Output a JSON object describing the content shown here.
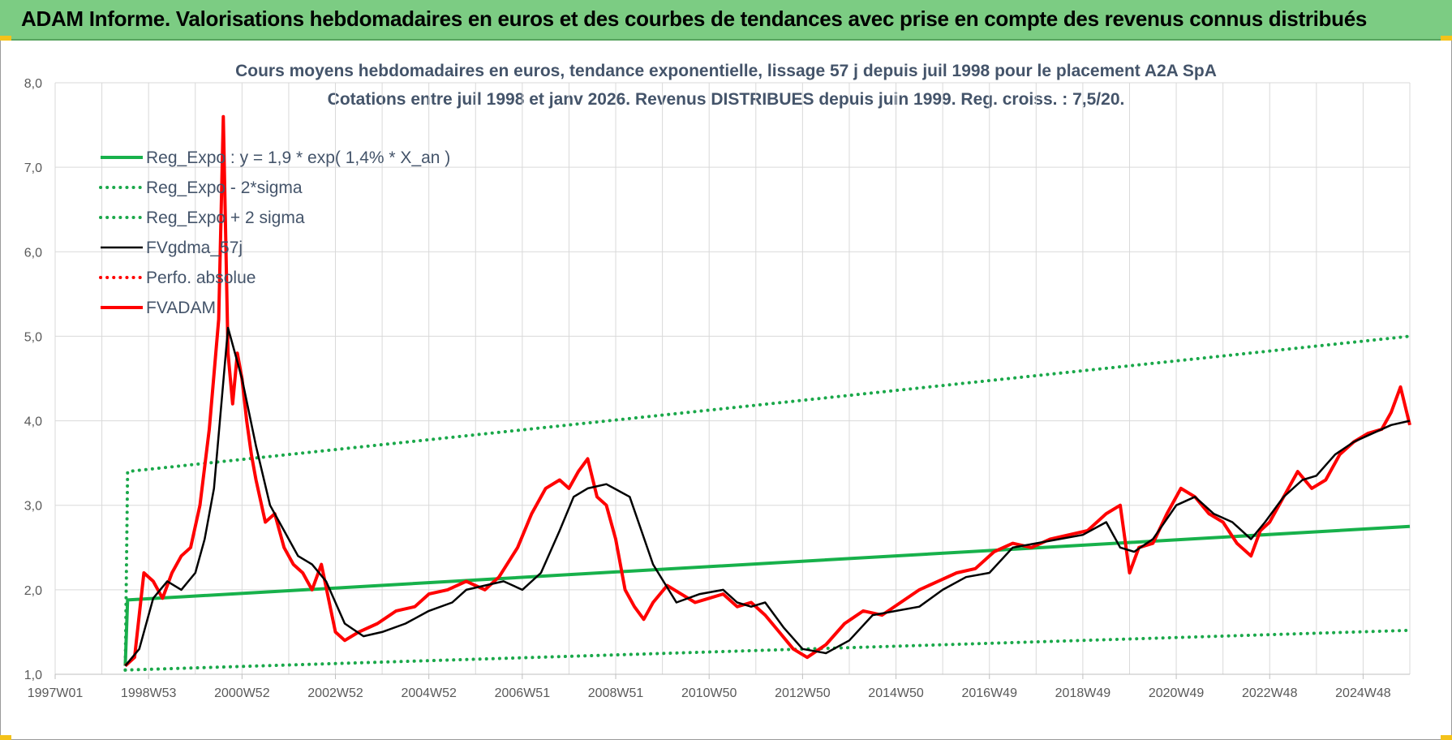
{
  "banner": {
    "title": "ADAM Informe. Valorisations hebdomadaires en euros et des courbes de tendances avec prise en compte des revenus connus distribués"
  },
  "colors": {
    "banner_bg": "#7ccc83",
    "title_text": "#44546a",
    "reg_green": "#17b14b",
    "band_green": "#1aa84a",
    "smooth_black": "#000000",
    "adam_red": "#ff0000",
    "grid": "#d9d9d9"
  },
  "chart_data": {
    "type": "line",
    "title": "Cours moyens hebdomadaires en euros, tendance exponentielle, lissage 57 j depuis juil 1998 pour le placement A2A SpA",
    "subtitle": "Cotations entre juil 1998 et janv 2026. Revenus DISTRIBUES depuis juin 1999.  Reg. croiss. : 7,5/20.",
    "xlabel": "",
    "ylabel": "",
    "ylim": [
      1.0,
      8.0
    ],
    "xlim": [
      1997.0,
      2026.0
    ],
    "y_ticks": [
      "1,0",
      "2,0",
      "3,0",
      "4,0",
      "5,0",
      "6,0",
      "7,0",
      "8,0"
    ],
    "x_ticks": [
      "1997W01",
      "1998W53",
      "2000W52",
      "2002W52",
      "2004W52",
      "2006W51",
      "2008W51",
      "2010W50",
      "2012W50",
      "2014W50",
      "2016W49",
      "2018W49",
      "2020W49",
      "2022W48",
      "2024W48"
    ],
    "grid": true,
    "legend_position": "top-left",
    "series": [
      {
        "name": "Reg_Expo : y = 1,9 * exp( 1,4% *  X_an )",
        "style": "solid-thick",
        "color": "#17b14b",
        "x": [
          1998.5,
          1998.55,
          2026.0
        ],
        "y": [
          1.1,
          1.88,
          2.75
        ]
      },
      {
        "name": "Reg_Expo - 2*sigma",
        "style": "dotted",
        "color": "#1aa84a",
        "x": [
          1998.5,
          2026.0
        ],
        "y": [
          1.05,
          1.52
        ]
      },
      {
        "name": "Reg_Expo + 2 sigma",
        "style": "dotted",
        "color": "#1aa84a",
        "x": [
          1998.5,
          1998.55,
          2026.0
        ],
        "y": [
          1.05,
          3.4,
          5.0
        ]
      },
      {
        "name": "FVgdma_57j",
        "style": "solid",
        "color": "#000000",
        "x": [
          1998.5,
          1998.8,
          1999.1,
          1999.4,
          1999.7,
          2000.0,
          2000.2,
          2000.4,
          2000.7,
          2001.0,
          2001.3,
          2001.6,
          2001.9,
          2002.2,
          2002.5,
          2002.8,
          2003.2,
          2003.6,
          2004.0,
          2004.5,
          2005.0,
          2005.5,
          2005.8,
          2006.2,
          2006.6,
          2007.0,
          2007.4,
          2007.8,
          2008.1,
          2008.4,
          2008.8,
          2009.3,
          2009.8,
          2010.3,
          2010.8,
          2011.3,
          2011.6,
          2011.9,
          2012.2,
          2012.6,
          2013.0,
          2013.5,
          2014.0,
          2014.5,
          2015.0,
          2015.5,
          2016.0,
          2016.5,
          2017.0,
          2017.5,
          2018.0,
          2018.5,
          2019.0,
          2019.5,
          2019.8,
          2020.1,
          2020.5,
          2021.0,
          2021.4,
          2021.8,
          2022.2,
          2022.6,
          2022.9,
          2023.3,
          2023.7,
          2024.0,
          2024.4,
          2024.8,
          2025.2,
          2025.6,
          2026.0
        ],
        "y": [
          1.1,
          1.3,
          1.9,
          2.1,
          2.0,
          2.2,
          2.6,
          3.2,
          5.1,
          4.5,
          3.7,
          3.0,
          2.7,
          2.4,
          2.3,
          2.1,
          1.6,
          1.45,
          1.5,
          1.6,
          1.75,
          1.85,
          2.0,
          2.05,
          2.1,
          2.0,
          2.2,
          2.7,
          3.1,
          3.2,
          3.25,
          3.1,
          2.3,
          1.85,
          1.95,
          2.0,
          1.85,
          1.8,
          1.85,
          1.55,
          1.3,
          1.25,
          1.4,
          1.7,
          1.75,
          1.8,
          2.0,
          2.15,
          2.2,
          2.5,
          2.55,
          2.6,
          2.65,
          2.8,
          2.5,
          2.45,
          2.6,
          3.0,
          3.1,
          2.9,
          2.8,
          2.6,
          2.8,
          3.1,
          3.3,
          3.35,
          3.6,
          3.75,
          3.85,
          3.95,
          4.0
        ]
      },
      {
        "name": "Perfo. absolue",
        "style": "dotted",
        "color": "#ff0000",
        "x": [],
        "y": []
      },
      {
        "name": "FVADAM",
        "style": "solid-thick",
        "color": "#ff0000",
        "x": [
          1998.5,
          1998.7,
          1998.9,
          1999.1,
          1999.3,
          1999.5,
          1999.7,
          1999.9,
          2000.1,
          2000.3,
          2000.5,
          2000.6,
          2000.7,
          2000.8,
          2000.9,
          2001.0,
          2001.1,
          2001.2,
          2001.3,
          2001.5,
          2001.7,
          2001.9,
          2002.1,
          2002.3,
          2002.5,
          2002.7,
          2003.0,
          2003.2,
          2003.5,
          2003.9,
          2004.3,
          2004.7,
          2005.0,
          2005.4,
          2005.8,
          2006.2,
          2006.5,
          2006.9,
          2007.2,
          2007.5,
          2007.8,
          2008.0,
          2008.2,
          2008.4,
          2008.6,
          2008.8,
          2009.0,
          2009.2,
          2009.4,
          2009.6,
          2009.8,
          2010.1,
          2010.4,
          2010.7,
          2011.0,
          2011.3,
          2011.6,
          2011.9,
          2012.2,
          2012.5,
          2012.8,
          2013.1,
          2013.5,
          2013.9,
          2014.3,
          2014.7,
          2015.1,
          2015.5,
          2015.9,
          2016.3,
          2016.7,
          2017.1,
          2017.5,
          2017.9,
          2018.3,
          2018.7,
          2019.1,
          2019.5,
          2019.8,
          2020.0,
          2020.2,
          2020.5,
          2020.8,
          2021.1,
          2021.4,
          2021.7,
          2022.0,
          2022.3,
          2022.6,
          2022.8,
          2023.0,
          2023.3,
          2023.6,
          2023.9,
          2024.2,
          2024.5,
          2024.8,
          2025.1,
          2025.4,
          2025.6,
          2025.8,
          2026.0
        ],
        "y": [
          1.1,
          1.2,
          2.2,
          2.1,
          1.9,
          2.2,
          2.4,
          2.5,
          3.0,
          3.9,
          5.2,
          7.6,
          4.8,
          4.2,
          4.8,
          4.5,
          4.0,
          3.6,
          3.3,
          2.8,
          2.9,
          2.5,
          2.3,
          2.2,
          2.0,
          2.3,
          1.5,
          1.4,
          1.5,
          1.6,
          1.75,
          1.8,
          1.95,
          2.0,
          2.1,
          2.0,
          2.15,
          2.5,
          2.9,
          3.2,
          3.3,
          3.2,
          3.4,
          3.55,
          3.1,
          3.0,
          2.6,
          2.0,
          1.8,
          1.65,
          1.85,
          2.05,
          1.95,
          1.85,
          1.9,
          1.95,
          1.8,
          1.85,
          1.7,
          1.5,
          1.3,
          1.2,
          1.35,
          1.6,
          1.75,
          1.7,
          1.85,
          2.0,
          2.1,
          2.2,
          2.25,
          2.45,
          2.55,
          2.5,
          2.6,
          2.65,
          2.7,
          2.9,
          3.0,
          2.2,
          2.5,
          2.55,
          2.9,
          3.2,
          3.1,
          2.9,
          2.8,
          2.55,
          2.4,
          2.7,
          2.8,
          3.1,
          3.4,
          3.2,
          3.3,
          3.6,
          3.75,
          3.85,
          3.9,
          4.1,
          4.4,
          3.95
        ]
      }
    ]
  }
}
